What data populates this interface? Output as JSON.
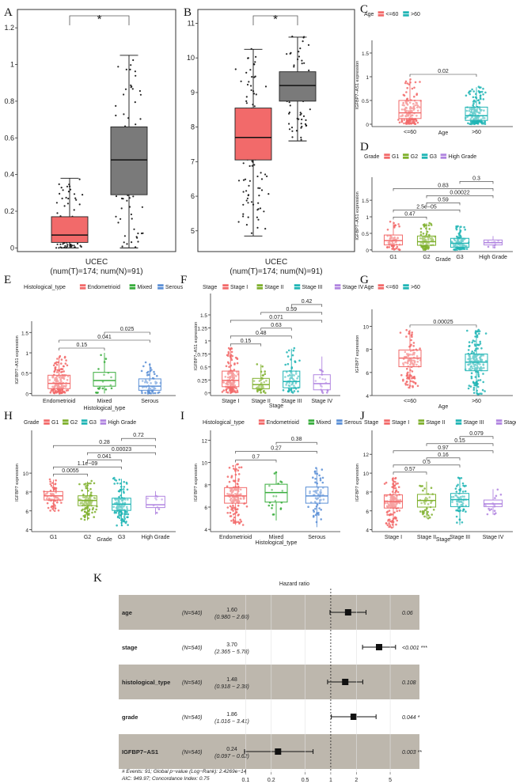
{
  "panels_text": {
    "A": "A",
    "B": "B",
    "C": "C",
    "D": "D",
    "E": "E",
    "F": "F",
    "G": "G",
    "H": "H",
    "I": "I",
    "J": "J",
    "K": "K"
  },
  "chart_data": [
    {
      "panel": "A",
      "type": "boxplot",
      "categories": [
        "T",
        "N"
      ],
      "yticks": [
        0.0,
        0.2,
        0.4,
        0.6,
        0.8,
        1.0,
        1.2
      ],
      "ylim": [
        -0.02,
        1.3
      ],
      "boxes": [
        {
          "name": "T",
          "color": "#f26a6a",
          "q1": 0.03,
          "median": 0.07,
          "q3": 0.17,
          "wlo": 0.0,
          "whi": 0.38
        },
        {
          "name": "N",
          "color": "#7a7a7a",
          "q1": 0.29,
          "median": 0.48,
          "q3": 0.66,
          "wlo": 0.0,
          "whi": 1.05
        }
      ],
      "significance": "*",
      "xlabel": "UCEC",
      "xlabel2": "(num(T)=174; num(N)=91)"
    },
    {
      "panel": "B",
      "type": "boxplot",
      "categories": [
        "T",
        "N"
      ],
      "yticks": [
        5,
        6,
        7,
        8,
        9,
        10,
        11
      ],
      "ylim": [
        4.4,
        11.4
      ],
      "boxes": [
        {
          "name": "T",
          "color": "#f26a6a",
          "q1": 7.05,
          "median": 7.7,
          "q3": 8.55,
          "wlo": 4.85,
          "whi": 10.25
        },
        {
          "name": "N",
          "color": "#7a7a7a",
          "q1": 8.75,
          "median": 9.2,
          "q3": 9.6,
          "wlo": 7.6,
          "whi": 10.6
        }
      ],
      "significance": "*",
      "xlabel": "UCEC",
      "xlabel2": "(num(T)=174; num(N)=91)"
    },
    {
      "panel": "C",
      "type": "boxplot",
      "legend_title": "Age",
      "categories": [
        "<=60",
        ">60"
      ],
      "colors": [
        "#f26a6a",
        "#21b5b5"
      ],
      "yticks": [
        0.0,
        0.5,
        1.0,
        1.5
      ],
      "ylim": [
        -0.05,
        1.7
      ],
      "boxes": [
        {
          "q1": 0.12,
          "median": 0.24,
          "q3": 0.5,
          "wlo": 0.0,
          "whi": 0.95
        },
        {
          "q1": 0.08,
          "median": 0.18,
          "q3": 0.36,
          "wlo": 0.0,
          "whi": 0.78
        }
      ],
      "comparisons": [
        {
          "a": 0,
          "b": 1,
          "p": "0.02"
        }
      ],
      "ylabel": "IGFBP7−AS1 expression",
      "xlabel": "Age"
    },
    {
      "panel": "D",
      "type": "boxplot",
      "legend_title": "Grade",
      "categories": [
        "G1",
        "G2",
        "G3",
        "High Grade"
      ],
      "colors": [
        "#f26a6a",
        "#7fb02d",
        "#21b5b5",
        "#b185e0"
      ],
      "yticks": [
        0.0,
        0.5,
        1.0,
        1.5
      ],
      "ylim": [
        -0.05,
        2.1
      ],
      "boxes": [
        {
          "q1": 0.15,
          "median": 0.28,
          "q3": 0.45,
          "wlo": 0.0,
          "whi": 0.85
        },
        {
          "q1": 0.14,
          "median": 0.25,
          "q3": 0.42,
          "wlo": 0.0,
          "whi": 0.8
        },
        {
          "q1": 0.08,
          "median": 0.2,
          "q3": 0.35,
          "wlo": 0.0,
          "whi": 0.72
        },
        {
          "q1": 0.15,
          "median": 0.22,
          "q3": 0.3,
          "wlo": 0.05,
          "whi": 0.42
        }
      ],
      "comparisons": [
        {
          "a": 0,
          "b": 1,
          "p": "0.47"
        },
        {
          "a": 0,
          "b": 2,
          "p": "2.5e−05"
        },
        {
          "a": 1,
          "b": 2,
          "p": "0.59"
        },
        {
          "a": 1,
          "b": 3,
          "p": "0.00022"
        },
        {
          "a": 0,
          "b": 3,
          "p": "0.83"
        },
        {
          "a": 2,
          "b": 3,
          "p": "0.3"
        }
      ],
      "ylabel": "IGFBP7−AS1 expression",
      "xlabel": "Grade"
    },
    {
      "panel": "E",
      "type": "boxplot",
      "legend_title": "Histological_type",
      "categories": [
        "Endometrioid",
        "Mixed",
        "Serous"
      ],
      "colors": [
        "#f26a6a",
        "#38ad3c",
        "#5b8fd6"
      ],
      "yticks": [
        0.0,
        0.5,
        1.0,
        1.5
      ],
      "ylim": [
        -0.05,
        1.7
      ],
      "boxes": [
        {
          "q1": 0.12,
          "median": 0.25,
          "q3": 0.45,
          "wlo": 0.0,
          "whi": 0.9
        },
        {
          "q1": 0.18,
          "median": 0.32,
          "q3": 0.52,
          "wlo": 0.0,
          "whi": 1.0
        },
        {
          "q1": 0.08,
          "median": 0.18,
          "q3": 0.36,
          "wlo": 0.0,
          "whi": 0.75
        }
      ],
      "comparisons": [
        {
          "a": 0,
          "b": 1,
          "p": "0.15"
        },
        {
          "a": 0,
          "b": 2,
          "p": "0.041"
        },
        {
          "a": 1,
          "b": 2,
          "p": "0.025"
        }
      ],
      "ylabel": "IGFBP7−AS1 expression",
      "xlabel": "Histological_type"
    },
    {
      "panel": "F",
      "type": "boxplot",
      "legend_title": "Stage",
      "categories": [
        "Stage I",
        "Stage II",
        "Stage III",
        "Stage IV"
      ],
      "colors": [
        "#f26a6a",
        "#7fb02d",
        "#21b5b5",
        "#b185e0"
      ],
      "yticks": [
        0.0,
        0.25,
        0.5,
        0.75,
        1.0,
        1.25,
        1.5
      ],
      "ylim": [
        -0.05,
        1.85
      ],
      "boxes": [
        {
          "q1": 0.12,
          "median": 0.24,
          "q3": 0.42,
          "wlo": 0.0,
          "whi": 0.85
        },
        {
          "q1": 0.08,
          "median": 0.16,
          "q3": 0.28,
          "wlo": 0.0,
          "whi": 0.55
        },
        {
          "q1": 0.1,
          "median": 0.22,
          "q3": 0.42,
          "wlo": 0.0,
          "whi": 0.85
        },
        {
          "q1": 0.06,
          "median": 0.18,
          "q3": 0.35,
          "wlo": 0.0,
          "whi": 0.7
        }
      ],
      "comparisons": [
        {
          "a": 0,
          "b": 1,
          "p": "0.15"
        },
        {
          "a": 0,
          "b": 2,
          "p": "0.48"
        },
        {
          "a": 1,
          "b": 2,
          "p": "0.63"
        },
        {
          "a": 0,
          "b": 3,
          "p": "0.071"
        },
        {
          "a": 1,
          "b": 3,
          "p": "0.59"
        },
        {
          "a": 2,
          "b": 3,
          "p": "0.42"
        }
      ],
      "ylabel": "IGFBP7−AS1 expression",
      "xlabel": "Stage"
    },
    {
      "panel": "G",
      "type": "boxplot",
      "legend_title": "Age",
      "categories": [
        "<=60",
        ">60"
      ],
      "colors": [
        "#f26a6a",
        "#21b5b5"
      ],
      "yticks": [
        4,
        6,
        8,
        10
      ],
      "ylim": [
        4,
        11.2
      ],
      "boxes": [
        {
          "q1": 6.5,
          "median": 7.25,
          "q3": 7.95,
          "wlo": 4.6,
          "whi": 9.7
        },
        {
          "q1": 6.15,
          "median": 6.9,
          "q3": 7.6,
          "wlo": 4.1,
          "whi": 9.6
        }
      ],
      "comparisons": [
        {
          "a": 0,
          "b": 1,
          "p": "0.00025"
        }
      ],
      "ylabel": "IGFBP7 expression",
      "xlabel": "Age"
    },
    {
      "panel": "H",
      "type": "boxplot",
      "legend_title": "Grade",
      "categories": [
        "G1",
        "G2",
        "G3",
        "High Grade"
      ],
      "colors": [
        "#f26a6a",
        "#7fb02d",
        "#21b5b5",
        "#b185e0"
      ],
      "yticks": [
        4,
        6,
        8,
        10
      ],
      "ylim": [
        3.8,
        14.2
      ],
      "boxes": [
        {
          "q1": 7.15,
          "median": 7.6,
          "q3": 8.05,
          "wlo": 6.0,
          "whi": 9.3
        },
        {
          "q1": 6.55,
          "median": 7.1,
          "q3": 7.6,
          "wlo": 5.0,
          "whi": 9.1
        },
        {
          "q1": 6.05,
          "median": 6.7,
          "q3": 7.35,
          "wlo": 4.4,
          "whi": 9.4
        },
        {
          "q1": 6.35,
          "median": 6.65,
          "q3": 7.55,
          "wlo": 5.6,
          "whi": 8.1
        }
      ],
      "comparisons": [
        {
          "a": 0,
          "b": 1,
          "p": "0.0055"
        },
        {
          "a": 0,
          "b": 2,
          "p": "1.1e−09"
        },
        {
          "a": 1,
          "b": 2,
          "p": "0.041"
        },
        {
          "a": 1,
          "b": 3,
          "p": "0.00023"
        },
        {
          "a": 0,
          "b": 3,
          "p": "0.28"
        },
        {
          "a": 2,
          "b": 3,
          "p": "0.72"
        }
      ],
      "ylabel": "IGFBP7 expression",
      "xlabel": "Grade"
    },
    {
      "panel": "I",
      "type": "boxplot",
      "legend_title": "Histological_type",
      "categories": [
        "Endometrioid",
        "Mixed",
        "Serous"
      ],
      "colors": [
        "#f26a6a",
        "#38ad3c",
        "#5b8fd6"
      ],
      "yticks": [
        4,
        6,
        8,
        10,
        12
      ],
      "ylim": [
        3.8,
        12.6
      ],
      "boxes": [
        {
          "q1": 6.35,
          "median": 7.0,
          "q3": 7.75,
          "wlo": 4.4,
          "whi": 9.8
        },
        {
          "q1": 6.45,
          "median": 7.3,
          "q3": 8.05,
          "wlo": 4.8,
          "whi": 9.2
        },
        {
          "q1": 6.35,
          "median": 7.0,
          "q3": 7.8,
          "wlo": 4.2,
          "whi": 9.5
        }
      ],
      "comparisons": [
        {
          "a": 0,
          "b": 1,
          "p": "0.7"
        },
        {
          "a": 0,
          "b": 2,
          "p": "0.27"
        },
        {
          "a": 1,
          "b": 2,
          "p": "0.38"
        }
      ],
      "ylabel": "IGFBP7 expression",
      "xlabel": "Histological_type"
    },
    {
      "panel": "J",
      "type": "boxplot",
      "legend_title": "Stage",
      "categories": [
        "Stage I",
        "Stage II",
        "Stage III",
        "Stage IV"
      ],
      "colors": [
        "#f26a6a",
        "#7fb02d",
        "#21b5b5",
        "#b185e0"
      ],
      "yticks": [
        4,
        6,
        8,
        10,
        12
      ],
      "ylim": [
        3.8,
        14.2
      ],
      "boxes": [
        {
          "q1": 6.3,
          "median": 7.0,
          "q3": 7.7,
          "wlo": 4.2,
          "whi": 9.6
        },
        {
          "q1": 6.4,
          "median": 7.1,
          "q3": 7.75,
          "wlo": 5.2,
          "whi": 9.1
        },
        {
          "q1": 6.45,
          "median": 7.2,
          "q3": 7.85,
          "wlo": 4.5,
          "whi": 9.5
        },
        {
          "q1": 6.45,
          "median": 6.75,
          "q3": 7.15,
          "wlo": 5.6,
          "whi": 8.3
        }
      ],
      "comparisons": [
        {
          "a": 0,
          "b": 1,
          "p": "0.57"
        },
        {
          "a": 0,
          "b": 2,
          "p": "0.5"
        },
        {
          "a": 1,
          "b": 2,
          "p": "0.16"
        },
        {
          "a": 0,
          "b": 3,
          "p": "0.97"
        },
        {
          "a": 1,
          "b": 3,
          "p": "0.15"
        },
        {
          "a": 2,
          "b": 3,
          "p": "0.079"
        }
      ],
      "ylabel": "IGFBP7 expression",
      "xlabel": "Stage"
    },
    {
      "panel": "K",
      "type": "forest",
      "title": "Hazard ratio",
      "xticks": [
        0.1,
        0.2,
        0.5,
        1,
        2,
        5
      ],
      "xtick_labels": [
        "0.1",
        "0.2",
        "0.5",
        "1",
        "2",
        "5"
      ],
      "xlim": [
        0.08,
        8
      ],
      "rows": [
        {
          "name": "age",
          "n": "(N=540)",
          "hr": 1.6,
          "lo": 0.98,
          "hi": 2.6,
          "hr_text": "1.60",
          "ci_text": "(0.980 − 2.60)",
          "p_text": "0.06"
        },
        {
          "name": "stage",
          "n": "(N=540)",
          "hr": 3.7,
          "lo": 2.365,
          "hi": 5.78,
          "hr_text": "3.70",
          "ci_text": "(2.365 − 5.78)",
          "p_text": "<0.001 ***"
        },
        {
          "name": "histological_type",
          "n": "(N=540)",
          "hr": 1.48,
          "lo": 0.918,
          "hi": 2.38,
          "hr_text": "1.48",
          "ci_text": "(0.918 − 2.38)",
          "p_text": "0.108"
        },
        {
          "name": "grade",
          "n": "(N=540)",
          "hr": 1.86,
          "lo": 1.016,
          "hi": 3.41,
          "hr_text": "1.86",
          "ci_text": "(1.016 − 3.41)",
          "p_text": "0.044 *"
        },
        {
          "name": "IGFBP7−AS1",
          "n": "(N=540)",
          "hr": 0.24,
          "lo": 0.097,
          "hi": 0.62,
          "hr_text": "0.24",
          "ci_text": "(0.097 − 0.62)",
          "p_text": "0.003 **"
        }
      ],
      "footer1": "# Events: 91; Global p−value (Log−Rank): 2.4269e−14",
      "footer2": "AIC: 949.97; Concordance Index: 0.75"
    }
  ]
}
